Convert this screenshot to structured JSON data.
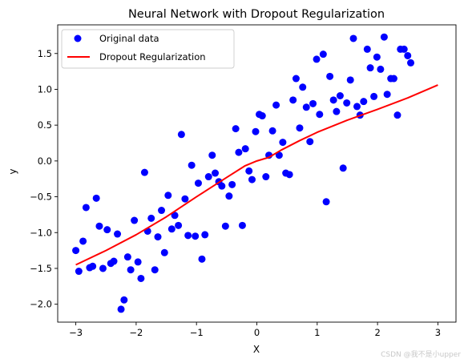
{
  "chart_data": {
    "type": "scatter",
    "title": "Neural Network with Dropout Regularization",
    "xlabel": "X",
    "ylabel": "y",
    "xlim": [
      -3.3,
      3.3
    ],
    "ylim": [
      -2.25,
      1.9
    ],
    "xticks": [
      -3,
      -2,
      -1,
      0,
      1,
      2,
      3
    ],
    "xtick_labels": [
      "−3",
      "−2",
      "−1",
      "0",
      "1",
      "2",
      "3"
    ],
    "yticks": [
      -2.0,
      -1.5,
      -1.0,
      -0.5,
      0.0,
      0.5,
      1.0,
      1.5
    ],
    "ytick_labels": [
      "−2.0",
      "−1.5",
      "−1.0",
      "−0.5",
      "0.0",
      "0.5",
      "1.0",
      "1.5"
    ],
    "grid": false,
    "legend_position": "top-left",
    "series": [
      {
        "name": "Original data",
        "kind": "scatter",
        "color": "#0000ff",
        "points": [
          [
            -3.0,
            -1.25
          ],
          [
            -2.95,
            -1.54
          ],
          [
            -2.88,
            -1.12
          ],
          [
            -2.83,
            -0.65
          ],
          [
            -2.77,
            -1.49
          ],
          [
            -2.72,
            -1.47
          ],
          [
            -2.66,
            -0.52
          ],
          [
            -2.61,
            -0.91
          ],
          [
            -2.55,
            -1.5
          ],
          [
            -2.48,
            -0.96
          ],
          [
            -2.42,
            -1.43
          ],
          [
            -2.37,
            -1.4
          ],
          [
            -2.31,
            -1.02
          ],
          [
            -2.25,
            -2.07
          ],
          [
            -2.2,
            -1.94
          ],
          [
            -2.14,
            -1.34
          ],
          [
            -2.09,
            -1.52
          ],
          [
            -2.03,
            -0.83
          ],
          [
            -1.97,
            -1.41
          ],
          [
            -1.92,
            -1.64
          ],
          [
            -1.86,
            -0.16
          ],
          [
            -1.81,
            -0.98
          ],
          [
            -1.75,
            -0.8
          ],
          [
            -1.69,
            -1.52
          ],
          [
            -1.64,
            -1.06
          ],
          [
            -1.58,
            -0.69
          ],
          [
            -1.53,
            -1.28
          ],
          [
            -1.47,
            -0.48
          ],
          [
            -1.41,
            -0.95
          ],
          [
            -1.36,
            -0.76
          ],
          [
            -1.3,
            -0.9
          ],
          [
            -1.25,
            0.37
          ],
          [
            -1.19,
            -0.53
          ],
          [
            -1.14,
            -1.04
          ],
          [
            -1.08,
            -0.06
          ],
          [
            -1.02,
            -1.05
          ],
          [
            -0.97,
            -0.31
          ],
          [
            -0.91,
            -1.37
          ],
          [
            -0.86,
            -1.03
          ],
          [
            -0.8,
            -0.22
          ],
          [
            -0.74,
            0.08
          ],
          [
            -0.69,
            -0.17
          ],
          [
            -0.63,
            -0.29
          ],
          [
            -0.58,
            -0.35
          ],
          [
            -0.52,
            -0.91
          ],
          [
            -0.46,
            -0.49
          ],
          [
            -0.41,
            -0.33
          ],
          [
            -0.35,
            0.45
          ],
          [
            -0.3,
            0.12
          ],
          [
            -0.24,
            -0.9
          ],
          [
            -0.19,
            0.17
          ],
          [
            -0.13,
            -0.14
          ],
          [
            -0.08,
            -0.26
          ],
          [
            -0.02,
            0.41
          ],
          [
            0.04,
            0.65
          ],
          [
            0.09,
            0.63
          ],
          [
            0.15,
            -0.22
          ],
          [
            0.2,
            0.08
          ],
          [
            0.26,
            0.42
          ],
          [
            0.32,
            0.78
          ],
          [
            0.37,
            0.08
          ],
          [
            0.43,
            0.26
          ],
          [
            0.48,
            -0.17
          ],
          [
            0.54,
            -0.19
          ],
          [
            0.6,
            0.85
          ],
          [
            0.65,
            1.15
          ],
          [
            0.71,
            0.46
          ],
          [
            0.76,
            1.03
          ],
          [
            0.82,
            0.75
          ],
          [
            0.88,
            0.27
          ],
          [
            0.93,
            0.8
          ],
          [
            0.99,
            1.42
          ],
          [
            1.04,
            0.65
          ],
          [
            1.1,
            1.49
          ],
          [
            1.15,
            -0.57
          ],
          [
            1.21,
            1.18
          ],
          [
            1.27,
            0.85
          ],
          [
            1.32,
            0.69
          ],
          [
            1.38,
            0.91
          ],
          [
            1.43,
            -0.1
          ],
          [
            1.49,
            0.81
          ],
          [
            1.55,
            1.13
          ],
          [
            1.6,
            1.71
          ],
          [
            1.66,
            0.76
          ],
          [
            1.71,
            0.64
          ],
          [
            1.77,
            0.83
          ],
          [
            1.83,
            1.56
          ],
          [
            1.88,
            1.3
          ],
          [
            1.94,
            0.9
          ],
          [
            1.99,
            1.45
          ],
          [
            2.05,
            1.28
          ],
          [
            2.11,
            1.73
          ],
          [
            2.16,
            0.93
          ],
          [
            2.22,
            1.15
          ],
          [
            2.27,
            1.15
          ],
          [
            2.33,
            0.64
          ],
          [
            2.38,
            1.56
          ],
          [
            2.44,
            1.56
          ],
          [
            2.5,
            1.47
          ],
          [
            2.55,
            1.37
          ]
        ]
      },
      {
        "name": "Dropout Regularization",
        "kind": "line",
        "color": "#ff0000",
        "points": [
          [
            -3.0,
            -1.45
          ],
          [
            -2.5,
            -1.25
          ],
          [
            -2.0,
            -1.03
          ],
          [
            -1.5,
            -0.78
          ],
          [
            -1.0,
            -0.5
          ],
          [
            -0.5,
            -0.23
          ],
          [
            -0.2,
            -0.07
          ],
          [
            0.0,
            0.0
          ],
          [
            0.2,
            0.05
          ],
          [
            0.4,
            0.15
          ],
          [
            0.7,
            0.28
          ],
          [
            1.0,
            0.4
          ],
          [
            1.5,
            0.57
          ],
          [
            2.0,
            0.72
          ],
          [
            2.5,
            0.88
          ],
          [
            3.0,
            1.06
          ]
        ]
      }
    ]
  },
  "watermark": "CSDN @我不是小upper"
}
